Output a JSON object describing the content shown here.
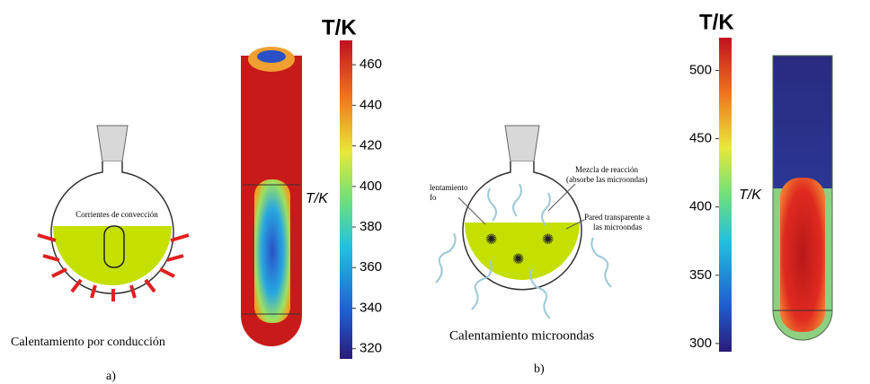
{
  "panels": [
    {
      "label": "a)",
      "caption": "Calentamiento por conducción",
      "annotations": [
        "Corrientes de convección"
      ],
      "colorbar": {
        "title": "T/K",
        "axis_label": "T/K",
        "lim": [
          315,
          472
        ],
        "ticks": [
          320,
          340,
          360,
          380,
          400,
          420,
          440,
          460
        ]
      }
    },
    {
      "label": "b)",
      "caption": "Calentamiento microondas",
      "annotations": [
        "Mezcla de reacción",
        "(absorbe las microondas)",
        "lentamiento",
        "fo",
        "Pared transparente a",
        "las microondas"
      ],
      "colorbar": {
        "title": "T/K",
        "axis_label": "T/K",
        "lim": [
          294,
          524
        ],
        "ticks": [
          300,
          350,
          400,
          450,
          500
        ]
      }
    }
  ]
}
